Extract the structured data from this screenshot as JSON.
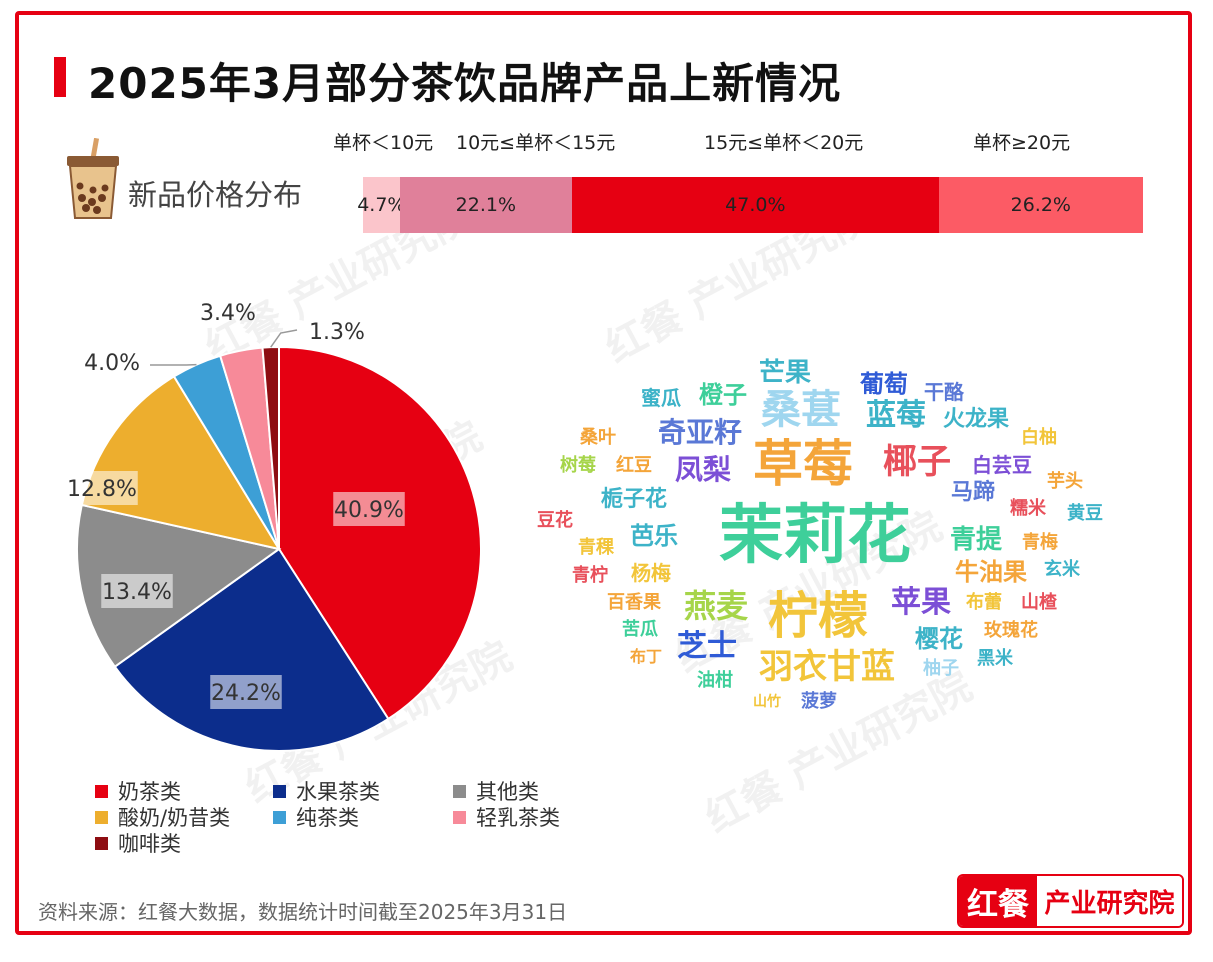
{
  "title": "2025年3月部分茶饮品牌产品上新情况",
  "price_section": {
    "label": "新品价格分布",
    "bands": [
      {
        "label": "单杯＜10元",
        "value": "4.7%",
        "pct": 4.7,
        "color": "#fbc5cb"
      },
      {
        "label": "10元≤单杯＜15元",
        "value": "22.1%",
        "pct": 22.1,
        "color": "#e0809a"
      },
      {
        "label": "15元≤单杯＜20元",
        "value": "47.0%",
        "pct": 47.0,
        "color": "#e60012"
      },
      {
        "label": "单杯≥20元",
        "value": "26.2%",
        "pct": 26.2,
        "color": "#fc5b65"
      }
    ]
  },
  "chart_data": {
    "type": "pie",
    "slices": [
      {
        "name": "奶茶类",
        "value": 40.9,
        "label": "40.9%",
        "color": "#e60012"
      },
      {
        "name": "水果茶类",
        "value": 24.2,
        "label": "24.2%",
        "color": "#0c2d8c"
      },
      {
        "name": "其他类",
        "value": 13.4,
        "label": "13.4%",
        "color": "#8c8c8c"
      },
      {
        "name": "酸奶/奶昔类",
        "value": 12.8,
        "label": "12.8%",
        "color": "#edae2e"
      },
      {
        "name": "纯茶类",
        "value": 4.0,
        "label": "4.0%",
        "color": "#3d9fd6"
      },
      {
        "name": "轻乳茶类",
        "value": 3.4,
        "label": "3.4%",
        "color": "#f78a99"
      },
      {
        "name": "咖啡类",
        "value": 1.3,
        "label": "1.3%",
        "color": "#8e0d12"
      }
    ]
  },
  "legend": {
    "items": [
      {
        "name": "奶茶类",
        "color": "#e60012"
      },
      {
        "name": "水果茶类",
        "color": "#0c2d8c"
      },
      {
        "name": "其他类",
        "color": "#8c8c8c"
      },
      {
        "name": "酸奶/奶昔类",
        "color": "#edae2e"
      },
      {
        "name": "纯茶类",
        "color": "#3d9fd6"
      },
      {
        "name": "轻乳茶类",
        "color": "#f78a99"
      },
      {
        "name": "咖啡类",
        "color": "#8e0d12"
      }
    ]
  },
  "word_cloud": {
    "words": [
      {
        "text": "茉莉花",
        "color": "#3ecf9a",
        "weight": 10
      },
      {
        "text": "草莓",
        "color": "#f4a53a",
        "weight": 7
      },
      {
        "text": "柠檬",
        "color": "#f2c53a",
        "weight": 7
      },
      {
        "text": "羽衣甘蓝",
        "color": "#f2c53a",
        "weight": 5
      },
      {
        "text": "桑葚",
        "color": "#9fd6ef",
        "weight": 5
      },
      {
        "text": "椰子",
        "color": "#e8505b",
        "weight": 5
      },
      {
        "text": "燕麦",
        "color": "#a6d54a",
        "weight": 4
      },
      {
        "text": "苹果",
        "color": "#7c4fd6",
        "weight": 4
      },
      {
        "text": "蓝莓",
        "color": "#3db3c8",
        "weight": 4
      },
      {
        "text": "奇亚籽",
        "color": "#5a78d6",
        "weight": 4
      },
      {
        "text": "凤梨",
        "color": "#7c4fd6",
        "weight": 4
      },
      {
        "text": "芝士",
        "color": "#2f5bd6",
        "weight": 4
      },
      {
        "text": "芒果",
        "color": "#3db3c8",
        "weight": 3
      },
      {
        "text": "葡萄",
        "color": "#2f5bd6",
        "weight": 3
      },
      {
        "text": "橙子",
        "color": "#3ecf9a",
        "weight": 3
      },
      {
        "text": "火龙果",
        "color": "#3db3c8",
        "weight": 3
      },
      {
        "text": "青提",
        "color": "#3ecf9a",
        "weight": 3
      },
      {
        "text": "牛油果",
        "color": "#f4a53a",
        "weight": 3
      },
      {
        "text": "樱花",
        "color": "#3db3c8",
        "weight": 3
      },
      {
        "text": "栀子花",
        "color": "#3db3c8",
        "weight": 3
      },
      {
        "text": "芭乐",
        "color": "#3db3c8",
        "weight": 3
      },
      {
        "text": "马蹄",
        "color": "#5a78d6",
        "weight": 3
      },
      {
        "text": "白芸豆",
        "color": "#7c4fd6",
        "weight": 2
      },
      {
        "text": "蜜瓜",
        "color": "#3db3c8",
        "weight": 2
      },
      {
        "text": "干酪",
        "color": "#5a78d6",
        "weight": 2
      },
      {
        "text": "桑叶",
        "color": "#f4a53a",
        "weight": 2
      },
      {
        "text": "红豆",
        "color": "#f4a53a",
        "weight": 2
      },
      {
        "text": "树莓",
        "color": "#a6d54a",
        "weight": 2
      },
      {
        "text": "白柚",
        "color": "#f2c53a",
        "weight": 2
      },
      {
        "text": "芋头",
        "color": "#f4a53a",
        "weight": 2
      },
      {
        "text": "糯米",
        "color": "#e8505b",
        "weight": 2
      },
      {
        "text": "黄豆",
        "color": "#3db3c8",
        "weight": 2
      },
      {
        "text": "豆花",
        "color": "#e8505b",
        "weight": 2
      },
      {
        "text": "青稞",
        "color": "#f2c53a",
        "weight": 2
      },
      {
        "text": "青梅",
        "color": "#f4a53a",
        "weight": 2
      },
      {
        "text": "青柠",
        "color": "#e8505b",
        "weight": 2
      },
      {
        "text": "杨梅",
        "color": "#f2c53a",
        "weight": 2
      },
      {
        "text": "玄米",
        "color": "#3db3c8",
        "weight": 2
      },
      {
        "text": "百香果",
        "color": "#f4a53a",
        "weight": 2
      },
      {
        "text": "布蕾",
        "color": "#f2c53a",
        "weight": 2
      },
      {
        "text": "山楂",
        "color": "#e8505b",
        "weight": 2
      },
      {
        "text": "苦瓜",
        "color": "#3ecf9a",
        "weight": 2
      },
      {
        "text": "玫瑰花",
        "color": "#f4a53a",
        "weight": 2
      },
      {
        "text": "布丁",
        "color": "#f4a53a",
        "weight": 2
      },
      {
        "text": "柚子",
        "color": "#9fd6ef",
        "weight": 2
      },
      {
        "text": "黑米",
        "color": "#3db3c8",
        "weight": 2
      },
      {
        "text": "油柑",
        "color": "#3ecf9a",
        "weight": 2
      },
      {
        "text": "山竹",
        "color": "#f2c53a",
        "weight": 1
      },
      {
        "text": "菠萝",
        "color": "#5a78d6",
        "weight": 2
      }
    ]
  },
  "watermark": "红餐 产业研究院",
  "source": "资料来源：红餐大数据，数据统计时间截至2025年3月31日",
  "logo": {
    "left": "红餐",
    "right": "产业研究院"
  }
}
